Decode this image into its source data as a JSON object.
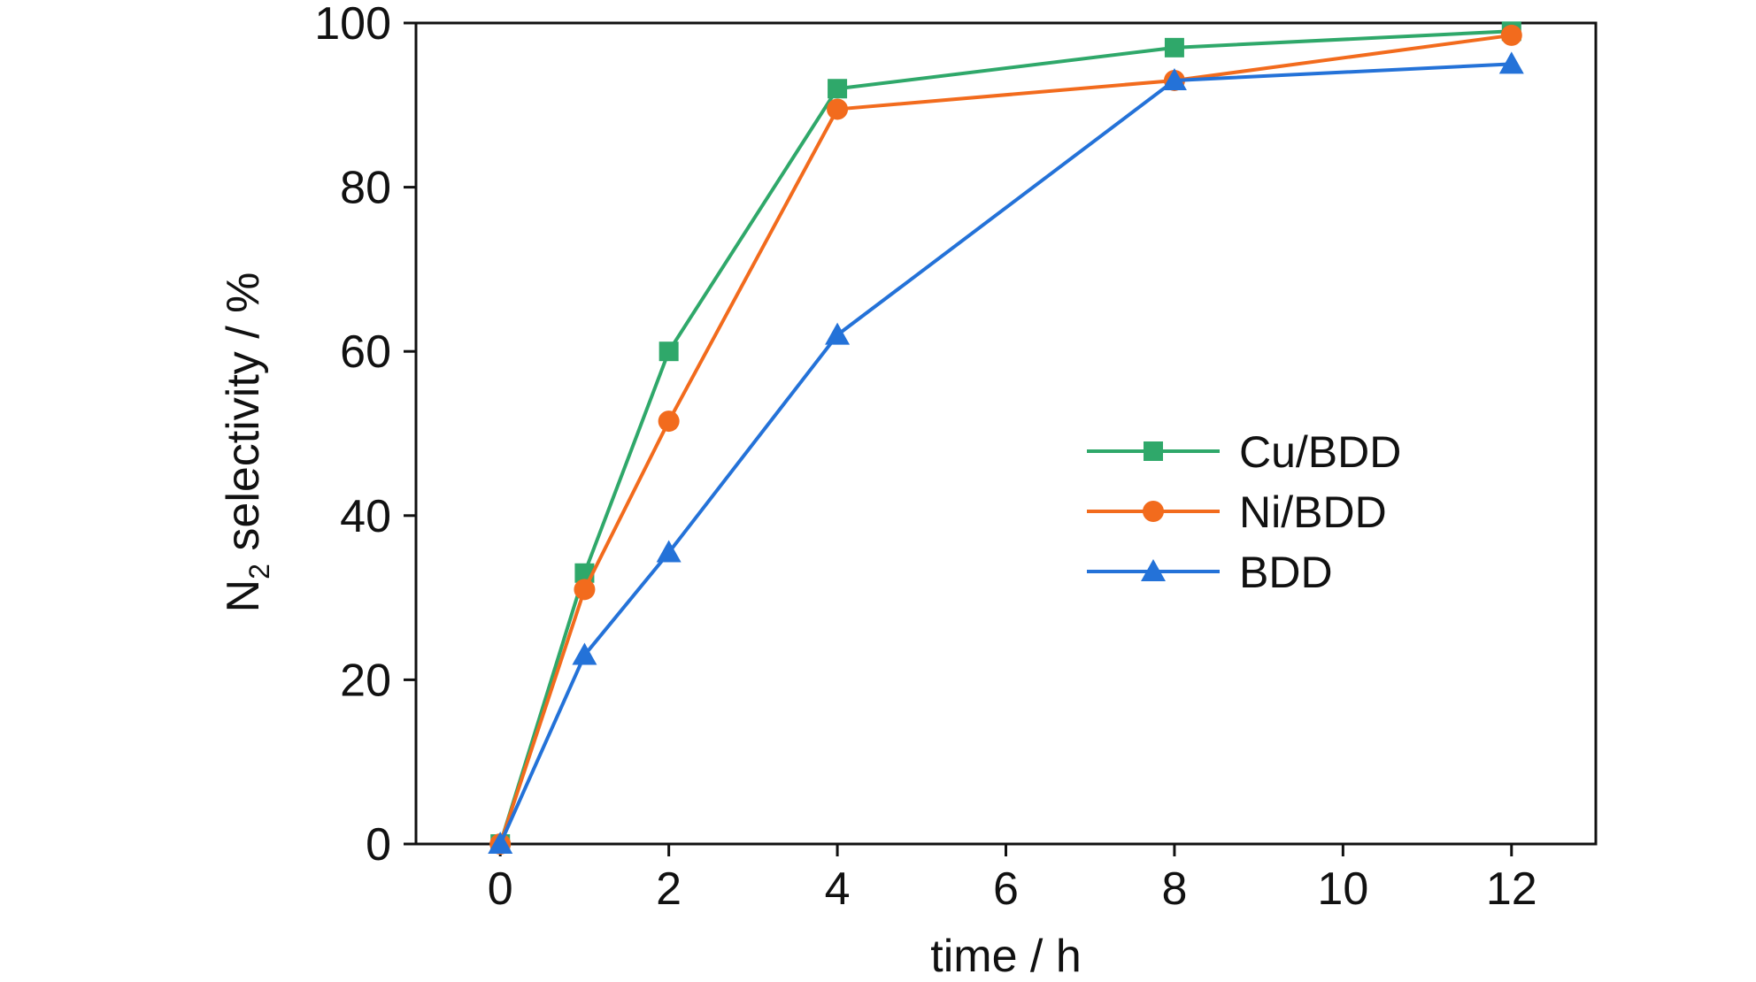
{
  "chart_data": {
    "type": "line",
    "xlabel": "time / h",
    "ylabel": {
      "prefix": "N",
      "subscript": "2",
      "suffix": " selectivity / %"
    },
    "xlim": [
      -1,
      13
    ],
    "ylim": [
      0,
      100
    ],
    "xticks": [
      0,
      2,
      4,
      6,
      8,
      10,
      12
    ],
    "yticks": [
      0,
      20,
      40,
      60,
      80,
      100
    ],
    "grid": false,
    "legend_position": "center-right",
    "x": [
      0,
      1,
      2,
      4,
      8,
      12
    ],
    "series": [
      {
        "name": "Cu/BDD",
        "marker": "square",
        "color": "#2fa86a",
        "values": [
          0,
          33,
          60,
          92,
          97,
          99
        ]
      },
      {
        "name": "Ni/BDD",
        "marker": "circle",
        "color": "#f26b1d",
        "values": [
          0,
          31,
          51.5,
          89.5,
          93,
          98.5
        ]
      },
      {
        "name": "BDD",
        "marker": "triangle",
        "color": "#2472d8",
        "values": [
          0,
          23,
          35.5,
          62,
          93,
          95
        ]
      }
    ]
  }
}
